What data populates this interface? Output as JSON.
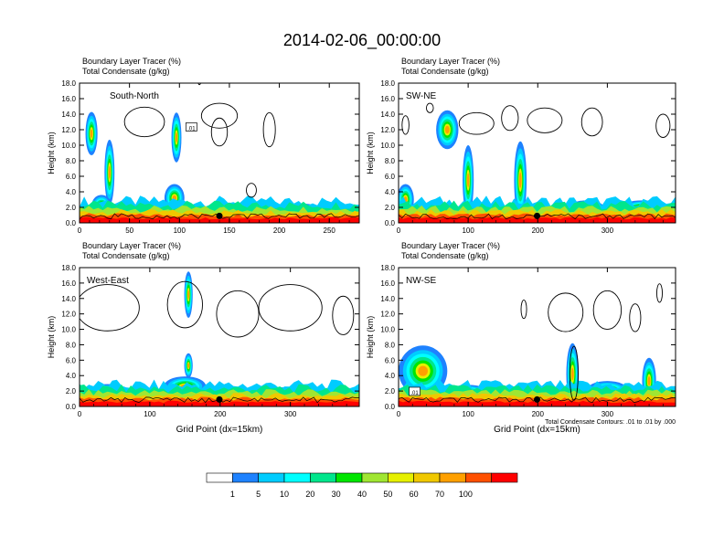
{
  "chart_data": {
    "type": "heatmap",
    "title": "2014-02-06_00:00:00",
    "panels": [
      {
        "label": "South-North",
        "line1": "Boundary Layer Tracer   (%)",
        "line2": "Total Condensate   (g/kg)",
        "xlabel": "",
        "ylabel": "Height (km)",
        "xlim": [
          0,
          280
        ],
        "ylim": [
          0,
          18
        ],
        "xticks": [
          "0",
          "50",
          "100",
          "150",
          "200",
          "250"
        ],
        "yticks": [
          "0.0",
          "2.0",
          "4.0",
          "6.0",
          "8.0",
          "10.0",
          "12.0",
          "14.0",
          "16.0",
          "18.0"
        ],
        "marker_x": 140,
        "box_label": ".01"
      },
      {
        "label": "SW-NE",
        "line1": "Boundary Layer Tracer   (%)",
        "line2": "Total Condensate   (g/kg)",
        "xlabel": "",
        "ylabel": "Height (km)",
        "xlim": [
          0,
          398
        ],
        "ylim": [
          0,
          18
        ],
        "xticks": [
          "0",
          "100",
          "200",
          "300"
        ],
        "yticks": [
          "0.0",
          "2.0",
          "4.0",
          "6.0",
          "8.0",
          "10.0",
          "12.0",
          "14.0",
          "16.0",
          "18.0"
        ],
        "marker_x": 199
      },
      {
        "label": "West-East",
        "line1": "Boundary Layer Tracer   (%)",
        "line2": "Total Condensate   (g/kg)",
        "xlabel": "Grid Point (dx=15km)",
        "ylabel": "Height (km)",
        "xlim": [
          0,
          398
        ],
        "ylim": [
          0,
          18
        ],
        "xticks": [
          "0",
          "100",
          "200",
          "300"
        ],
        "yticks": [
          "0.0",
          "2.0",
          "4.0",
          "6.0",
          "8.0",
          "10.0",
          "12.0",
          "14.0",
          "16.0",
          "18.0"
        ],
        "marker_x": 199
      },
      {
        "label": "NW-SE",
        "line1": "Boundary Layer Tracer   (%)",
        "line2": "Total Condensate   (g/kg)",
        "xlabel": "Grid Point (dx=15km)",
        "ylabel": "Height (km)",
        "xlim": [
          0,
          398
        ],
        "ylim": [
          0,
          18
        ],
        "xticks": [
          "0",
          "100",
          "200",
          "300"
        ],
        "yticks": [
          "0.0",
          "2.0",
          "4.0",
          "6.0",
          "8.0",
          "10.0",
          "12.0",
          "14.0",
          "16.0",
          "18.0"
        ],
        "marker_x": 199,
        "box_label": ".01",
        "note": "Total Condensate Contours: .01 to .01 by .000"
      }
    ],
    "colorbar": {
      "labels": [
        "1",
        "5",
        "10",
        "20",
        "30",
        "40",
        "50",
        "60",
        "70",
        "100"
      ],
      "colors": [
        "#ffffff",
        "#1e82ff",
        "#00ccff",
        "#00ffff",
        "#00e68c",
        "#00e600",
        "#a0e632",
        "#e6f000",
        "#f0c800",
        "#ffa000",
        "#ff5000",
        "#ff0000"
      ]
    }
  }
}
